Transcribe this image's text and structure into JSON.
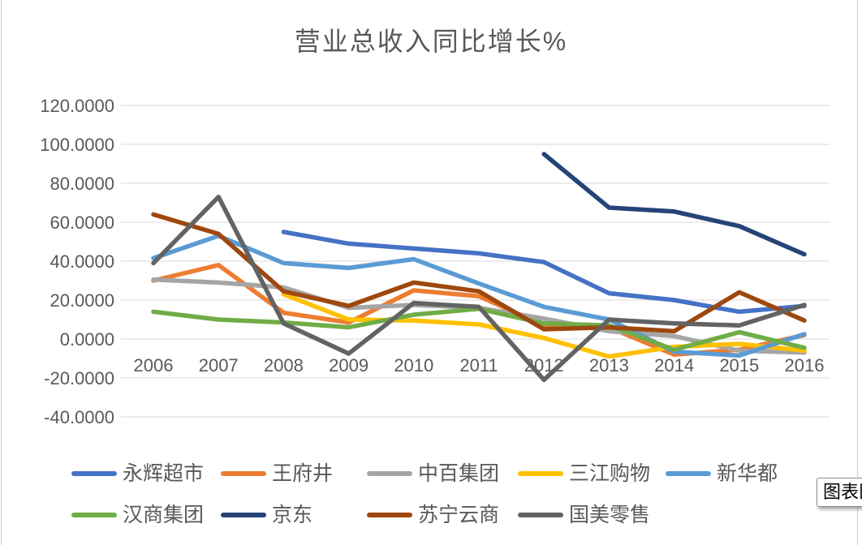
{
  "title": "营业总收入同比增长%",
  "tooltip": {
    "label": "图表区"
  },
  "colors": {
    "background": "#ffffff",
    "title_text": "#595959",
    "axis_text": "#595959",
    "legend_text": "#595959",
    "gridline": "#d9d9d9",
    "edge_border": "#cccccc",
    "tooltip_bg": "#ffffff",
    "tooltip_border": "#8c8c8c",
    "tooltip_text": "#000000"
  },
  "chart_data": {
    "type": "line",
    "title": "营业总收入同比增长%",
    "categories": [
      "2006",
      "2007",
      "2008",
      "2009",
      "2010",
      "2011",
      "2012",
      "2013",
      "2014",
      "2015",
      "2016"
    ],
    "xlabel": "",
    "ylabel": "",
    "y_axis": {
      "min": -40,
      "max": 120,
      "step": 20,
      "number_format": "0.0000",
      "tick_labels": [
        "120.0000",
        "100.0000",
        "80.0000",
        "60.0000",
        "40.0000",
        "20.0000",
        "0.0000",
        "-20.0000",
        "-40.0000"
      ]
    },
    "grid": true,
    "legend_position": "bottom",
    "series": [
      {
        "id": "yonghui",
        "name": "永辉超市",
        "color": "#4472C4",
        "values": [
          null,
          null,
          55,
          49,
          46.5,
          44,
          39.5,
          23.5,
          20,
          14,
          17
        ]
      },
      {
        "id": "wangfujing",
        "name": "王府井",
        "color": "#ED7D31",
        "values": [
          30,
          38,
          13.5,
          8.5,
          25,
          22,
          7,
          6,
          -8,
          -5.5,
          2
        ]
      },
      {
        "id": "zhongbai",
        "name": "中百集团",
        "color": "#A5A5A5",
        "values": [
          30.5,
          29,
          26.5,
          16,
          17.5,
          16,
          10.5,
          4,
          1.5,
          -6,
          -7
        ]
      },
      {
        "id": "sanjiang",
        "name": "三江购物",
        "color": "#FFC000",
        "values": [
          null,
          null,
          23,
          10,
          9.5,
          7.5,
          0.5,
          -9,
          -4,
          -2.5,
          -6
        ]
      },
      {
        "id": "xinhuadu",
        "name": "新华都",
        "color": "#5B9BD5",
        "values": [
          41.5,
          53,
          39,
          36.5,
          41,
          28.5,
          16.5,
          10,
          -6.5,
          -8.5,
          2.5
        ]
      },
      {
        "id": "hanshang",
        "name": "汉商集团",
        "color": "#70AD47",
        "values": [
          14,
          10,
          8.5,
          6,
          12.5,
          15.5,
          8,
          7,
          -5.5,
          3.5,
          -4.5
        ]
      },
      {
        "id": "jingdong",
        "name": "京东",
        "color": "#264478",
        "values": [
          null,
          null,
          null,
          null,
          null,
          null,
          95,
          67.5,
          65.5,
          58,
          43.5
        ]
      },
      {
        "id": "suning",
        "name": "苏宁云商",
        "color": "#9E480E",
        "values": [
          64,
          54,
          24.5,
          17,
          29,
          24.5,
          5,
          6,
          4,
          24,
          9.5
        ]
      },
      {
        "id": "gome",
        "name": "国美零售",
        "color": "#636363",
        "values": [
          39,
          73,
          8,
          -7.5,
          18.5,
          16.5,
          -21,
          10,
          8,
          7,
          17.5
        ]
      }
    ]
  }
}
